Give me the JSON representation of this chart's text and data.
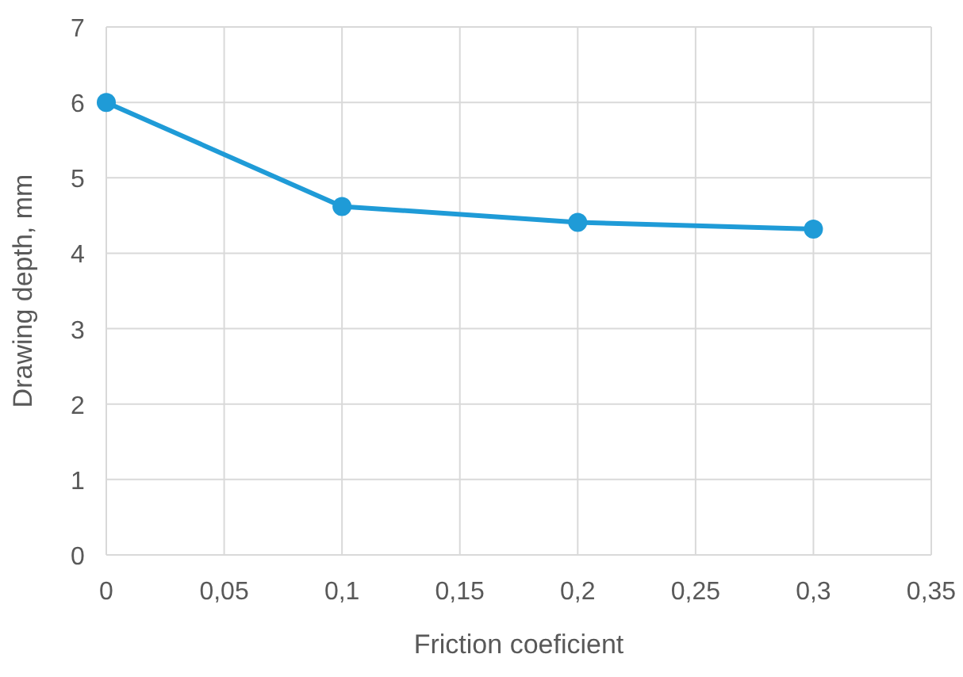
{
  "chart_data": {
    "type": "line",
    "xlabel": "Friction coeficient",
    "ylabel": "Drawing depth, mm",
    "x": [
      0,
      0.1,
      0.2,
      0.3
    ],
    "series": [
      {
        "color": "#1f9bd7",
        "values": [
          6,
          4.62,
          4.41,
          4.32
        ]
      }
    ],
    "xlim": [
      0,
      0.35
    ],
    "xticks": [
      0,
      {
        "value": 0.05,
        "label": "0,05"
      },
      {
        "value": 0.1,
        "label": "0,1"
      },
      {
        "value": 0.15,
        "label": "0,15"
      },
      {
        "value": 0.2,
        "label": "0,2"
      },
      {
        "value": 0.25,
        "label": "0,25"
      },
      {
        "value": 0.3,
        "label": "0,3"
      },
      {
        "value": 0.35,
        "label": "0,35"
      }
    ],
    "ylim": [
      0,
      7
    ],
    "yticks": [
      0,
      1,
      2,
      3,
      4,
      5,
      6,
      7
    ],
    "grid": true,
    "marker": "circle",
    "line_style": "solid"
  }
}
